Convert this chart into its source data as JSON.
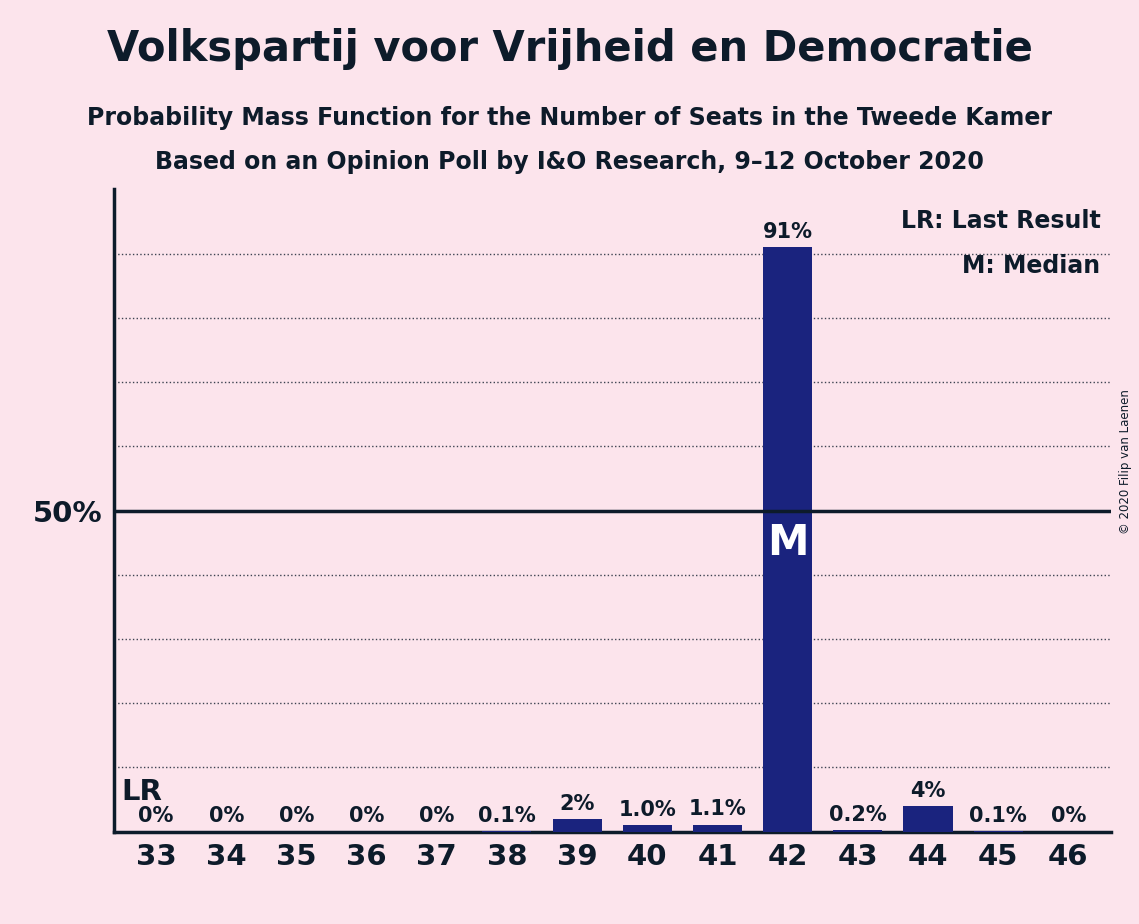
{
  "title": "Volkspartij voor Vrijheid en Democratie",
  "subtitle1": "Probability Mass Function for the Number of Seats in the Tweede Kamer",
  "subtitle2": "Based on an Opinion Poll by I&O Research, 9–12 October 2020",
  "copyright": "© 2020 Filip van Laenen",
  "seats": [
    33,
    34,
    35,
    36,
    37,
    38,
    39,
    40,
    41,
    42,
    43,
    44,
    45,
    46
  ],
  "probabilities": [
    0.0,
    0.0,
    0.0,
    0.0,
    0.0,
    0.1,
    2.0,
    1.0,
    1.1,
    91.0,
    0.2,
    4.0,
    0.1,
    0.0
  ],
  "bar_labels": [
    "0%",
    "0%",
    "0%",
    "0%",
    "0%",
    "0.1%",
    "2%",
    "1.0%",
    "1.1%",
    "91%",
    "0.2%",
    "4%",
    "0.1%",
    "0%"
  ],
  "bar_color": "#1a237e",
  "background_color": "#fce4ec",
  "last_result_seat": 33,
  "median_seat": 42,
  "ylim": [
    0,
    100
  ],
  "fifty_pct_line": 50,
  "lr_legend": "LR: Last Result",
  "median_legend": "M: Median",
  "median_bar_label": "M",
  "lr_bar_label": "LR",
  "title_fontsize": 30,
  "subtitle_fontsize": 17,
  "axis_label_fontsize": 21,
  "bar_label_fontsize": 15,
  "legend_fontsize": 17,
  "lr_fontsize": 21,
  "text_color": "#0d1b2a"
}
